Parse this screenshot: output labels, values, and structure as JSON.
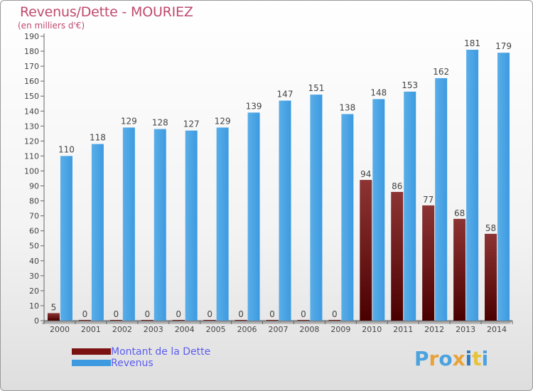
{
  "header": {
    "title": "Revenus/Dette - MOURIEZ",
    "subtitle": "(en milliers d'€)"
  },
  "legend": {
    "items": [
      {
        "label": "Montant de la Dette",
        "color": "#7a1212"
      },
      {
        "label": "Revenus",
        "color": "#3d9ae0"
      }
    ]
  },
  "logo": {
    "text": "Proxiti",
    "letters": [
      "P",
      "r",
      "o",
      "x",
      "i",
      "t",
      "i"
    ],
    "colors": [
      "#4aa3df",
      "#e8a23a",
      "#4aa3df",
      "#e8a23a",
      "#2e7bc4",
      "#e8c23a",
      "#4aa3df"
    ]
  },
  "chart_data": {
    "type": "bar",
    "title": "Revenus/Dette - MOURIEZ",
    "subtitle": "(en milliers d'€)",
    "categories": [
      "2000",
      "2001",
      "2002",
      "2003",
      "2004",
      "2005",
      "2006",
      "2007",
      "2008",
      "2009",
      "2010",
      "2011",
      "2012",
      "2013",
      "2014"
    ],
    "series": [
      {
        "name": "Montant de la Dette",
        "color": "#7a1212",
        "values": [
          5,
          0,
          0,
          0,
          0,
          0,
          0,
          0,
          0,
          0,
          94,
          86,
          77,
          68,
          58
        ]
      },
      {
        "name": "Revenus",
        "color": "#3d9ae0",
        "values": [
          110,
          118,
          129,
          128,
          127,
          129,
          139,
          147,
          151,
          138,
          148,
          153,
          162,
          181,
          179
        ]
      }
    ],
    "ylim": [
      0,
      190
    ],
    "ytick_step": 10,
    "grid": false,
    "legend_position": "bottom-left"
  }
}
